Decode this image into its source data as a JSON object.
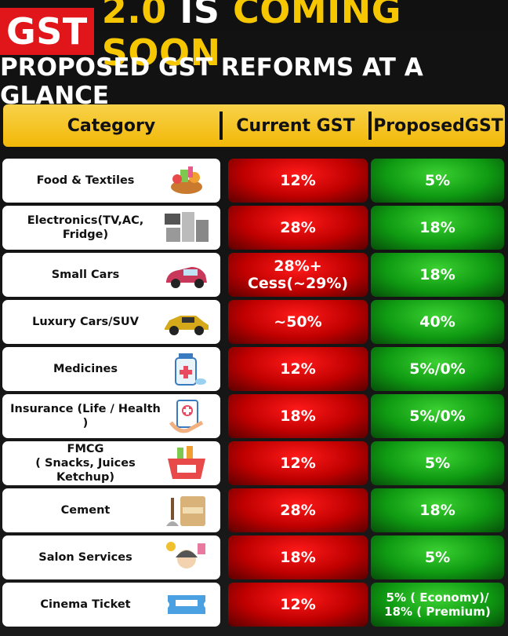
{
  "title": {
    "gst": "GST",
    "rest_yellow1": "2.0",
    "rest_white": "IS",
    "rest_yellow2": "COMING SOON"
  },
  "subtitle": "PROPOSED GST REFORMS AT A GLANCE",
  "header": {
    "category": "Category",
    "current": "Current GST",
    "proposed": "ProposedGST"
  },
  "rows": [
    {
      "category": "Food & Textiles",
      "icon": "food-basket-icon",
      "current": "12%",
      "proposed": "5%"
    },
    {
      "category": "Electronics(TV,AC, Fridge)",
      "icon": "electronics-icon",
      "current": "28%",
      "proposed": "18%"
    },
    {
      "category": "Small Cars",
      "icon": "small-car-icon",
      "current": "28%+ Cess(~29%)",
      "proposed": "18%"
    },
    {
      "category": "Luxury Cars/SUV",
      "icon": "luxury-car-icon",
      "current": "~50%",
      "proposed": "40%"
    },
    {
      "category": "Medicines",
      "icon": "medicine-bottle-icon",
      "current": "12%",
      "proposed": "5%/0%"
    },
    {
      "category": "Insurance (Life / Health )",
      "icon": "insurance-icon",
      "current": "18%",
      "proposed": "5%/0%"
    },
    {
      "category": "FMCG\n( Snacks, Juices Ketchup)",
      "icon": "shopping-basket-icon",
      "current": "12%",
      "proposed": "5%"
    },
    {
      "category": "Cement",
      "icon": "cement-bag-icon",
      "current": "28%",
      "proposed": "18%"
    },
    {
      "category": "Salon Services",
      "icon": "salon-icon",
      "current": "18%",
      "proposed": "5%"
    },
    {
      "category": "Cinema Ticket",
      "icon": "ticket-icon",
      "current": "12%",
      "proposed": "5% ( Economy)/\n18% ( Premium)"
    }
  ],
  "colors": {
    "accent_yellow": "#f6c600",
    "red": "#e0161b",
    "green": "#0f9a12"
  }
}
